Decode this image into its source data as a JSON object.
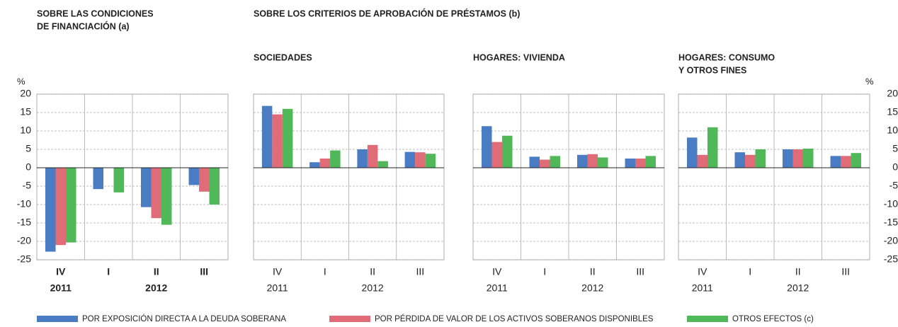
{
  "group_title": "SOBRE LOS CRITERIOS DE APROBACIÓN DE PRÉSTAMOS (b)",
  "chart_data": [
    {
      "type": "bar",
      "title": [
        "SOBRE LAS CONDICIONES",
        "DE FINANCIACIÓN (a)"
      ],
      "y_unit": "%",
      "y_axis_side": "left",
      "categories": [
        "IV",
        "I",
        "II",
        "III"
      ],
      "years": [
        "2011",
        null,
        "2012",
        null
      ],
      "ylim": [
        -25,
        20
      ],
      "yticks": [
        -25,
        -20,
        -15,
        -10,
        -5,
        0,
        5,
        10,
        15,
        20
      ],
      "grid": true,
      "series": [
        {
          "name": "POR EXPOSICIÓN DIRECTA A LA DEUDA SOBERANA",
          "color": "#4a7cc4",
          "values": [
            -22.8,
            -5.8,
            -10.7,
            -4.7
          ]
        },
        {
          "name": "POR PÉRDIDA DE VALOR DE LOS ACTIVOS SOBERANOS DISPONIBLES",
          "color": "#e06c78",
          "values": [
            -21,
            0,
            -13.7,
            -6.5
          ]
        },
        {
          "name": "OTROS EFECTOS (c)",
          "color": "#50b858",
          "values": [
            -20.3,
            -6.7,
            -15.5,
            -10
          ]
        }
      ]
    },
    {
      "type": "bar",
      "title": [
        "SOCIEDADES"
      ],
      "categories": [
        "IV",
        "I",
        "II",
        "III"
      ],
      "years": [
        "2011",
        null,
        "2012",
        null
      ],
      "ylim": [
        -25,
        20
      ],
      "yticks": [
        -25,
        -20,
        -15,
        -10,
        -5,
        0,
        5,
        10,
        15,
        20
      ],
      "grid": true,
      "series": [
        {
          "name": "POR EXPOSICIÓN DIRECTA A LA DEUDA SOBERANA",
          "color": "#4a7cc4",
          "values": [
            16.8,
            1.5,
            5,
            4.3
          ]
        },
        {
          "name": "POR PÉRDIDA DE VALOR DE LOS ACTIVOS SOBERANOS DISPONIBLES",
          "color": "#e06c78",
          "values": [
            14.5,
            2.5,
            6.2,
            4.2
          ]
        },
        {
          "name": "OTROS EFECTOS (c)",
          "color": "#50b858",
          "values": [
            16,
            4.7,
            1.8,
            3.8
          ]
        }
      ]
    },
    {
      "type": "bar",
      "title": [
        "HOGARES: VIVIENDA"
      ],
      "categories": [
        "IV",
        "I",
        "II",
        "III"
      ],
      "years": [
        "2011",
        null,
        "2012",
        null
      ],
      "ylim": [
        -25,
        20
      ],
      "yticks": [
        -25,
        -20,
        -15,
        -10,
        -5,
        0,
        5,
        10,
        15,
        20
      ],
      "grid": true,
      "series": [
        {
          "name": "POR EXPOSICIÓN DIRECTA A LA DEUDA SOBERANA",
          "color": "#4a7cc4",
          "values": [
            11.3,
            3,
            3.5,
            2.5
          ]
        },
        {
          "name": "POR PÉRDIDA DE VALOR DE LOS ACTIVOS SOBERANOS DISPONIBLES",
          "color": "#e06c78",
          "values": [
            7,
            2.2,
            3.7,
            2.5
          ]
        },
        {
          "name": "OTROS EFECTOS (c)",
          "color": "#50b858",
          "values": [
            8.7,
            3.2,
            2.8,
            3.2
          ]
        }
      ]
    },
    {
      "type": "bar",
      "title": [
        "HOGARES: CONSUMO",
        "Y OTROS FINES"
      ],
      "y_unit": "%",
      "y_axis_side": "right",
      "categories": [
        "IV",
        "I",
        "II",
        "III"
      ],
      "years": [
        "2011",
        null,
        "2012",
        null
      ],
      "ylim": [
        -25,
        20
      ],
      "yticks": [
        -25,
        -20,
        -15,
        -10,
        -5,
        0,
        5,
        10,
        15,
        20
      ],
      "grid": true,
      "series": [
        {
          "name": "POR EXPOSICIÓN DIRECTA A LA DEUDA SOBERANA",
          "color": "#4a7cc4",
          "values": [
            8.2,
            4.2,
            5,
            3.2
          ]
        },
        {
          "name": "POR PÉRDIDA DE VALOR DE LOS ACTIVOS SOBERANOS DISPONIBLES",
          "color": "#e06c78",
          "values": [
            3.5,
            3.5,
            5,
            3.2
          ]
        },
        {
          "name": "OTROS EFECTOS (c)",
          "color": "#50b858",
          "values": [
            11,
            5,
            5.2,
            4
          ]
        }
      ]
    }
  ]
}
